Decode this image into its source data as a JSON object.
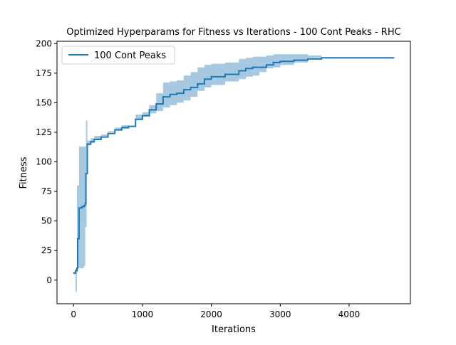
{
  "chart_data": {
    "type": "line",
    "title": "Optimized Hyperparams for Fitness vs Iterations - 100 Cont Peaks - RHC",
    "xlabel": "Iterations",
    "ylabel": "Fitness",
    "xlim": [
      -240,
      4890
    ],
    "ylim": [
      -20,
      202
    ],
    "xticks": [
      0,
      1000,
      2000,
      3000,
      4000
    ],
    "yticks": [
      0,
      25,
      50,
      75,
      100,
      125,
      150,
      175,
      200
    ],
    "grid": false,
    "legend_placement": "top-left",
    "colors": {
      "line": "#1f77b4",
      "band": "#a6c8e1"
    },
    "series": [
      {
        "name": "100 Cont Peaks",
        "x": [
          0,
          30,
          50,
          60,
          80,
          100,
          120,
          150,
          170,
          180,
          190,
          200,
          250,
          300,
          400,
          500,
          600,
          700,
          800,
          900,
          1000,
          1100,
          1200,
          1300,
          1400,
          1500,
          1600,
          1700,
          1800,
          1900,
          2000,
          2200,
          2400,
          2500,
          2600,
          2700,
          2800,
          2900,
          3000,
          3200,
          3400,
          3600,
          3700,
          4000,
          4300,
          4650
        ],
        "y": [
          6,
          8,
          10,
          35,
          61,
          61,
          62,
          63,
          65,
          90,
          90,
          115,
          117,
          119,
          121,
          124,
          127,
          129,
          130,
          136,
          139,
          144,
          149,
          155,
          157,
          158,
          161,
          163,
          166,
          170,
          172,
          174,
          177,
          179,
          180,
          180,
          182,
          184,
          185,
          186,
          187,
          188,
          188,
          188,
          188,
          188
        ],
        "lower": [
          5,
          5,
          -10,
          10,
          10,
          10,
          10,
          10,
          12,
          45,
          45,
          112,
          114,
          116,
          119,
          122,
          125,
          127,
          128,
          132,
          136,
          139,
          141,
          143,
          146,
          148,
          150,
          152,
          155,
          160,
          163,
          165,
          168,
          170,
          172,
          173,
          176,
          179,
          180,
          182,
          184,
          188,
          188,
          188,
          188,
          188
        ],
        "upper": [
          7,
          10,
          80,
          80,
          113,
          113,
          113,
          113,
          113,
          135,
          135,
          118,
          120,
          122,
          123,
          126,
          129,
          131,
          132,
          140,
          142,
          148,
          158,
          167,
          168,
          169,
          173,
          176,
          180,
          182,
          183,
          184,
          187,
          188,
          189,
          189,
          190,
          191,
          191,
          191,
          190,
          188,
          188,
          188,
          188,
          188
        ]
      }
    ]
  }
}
